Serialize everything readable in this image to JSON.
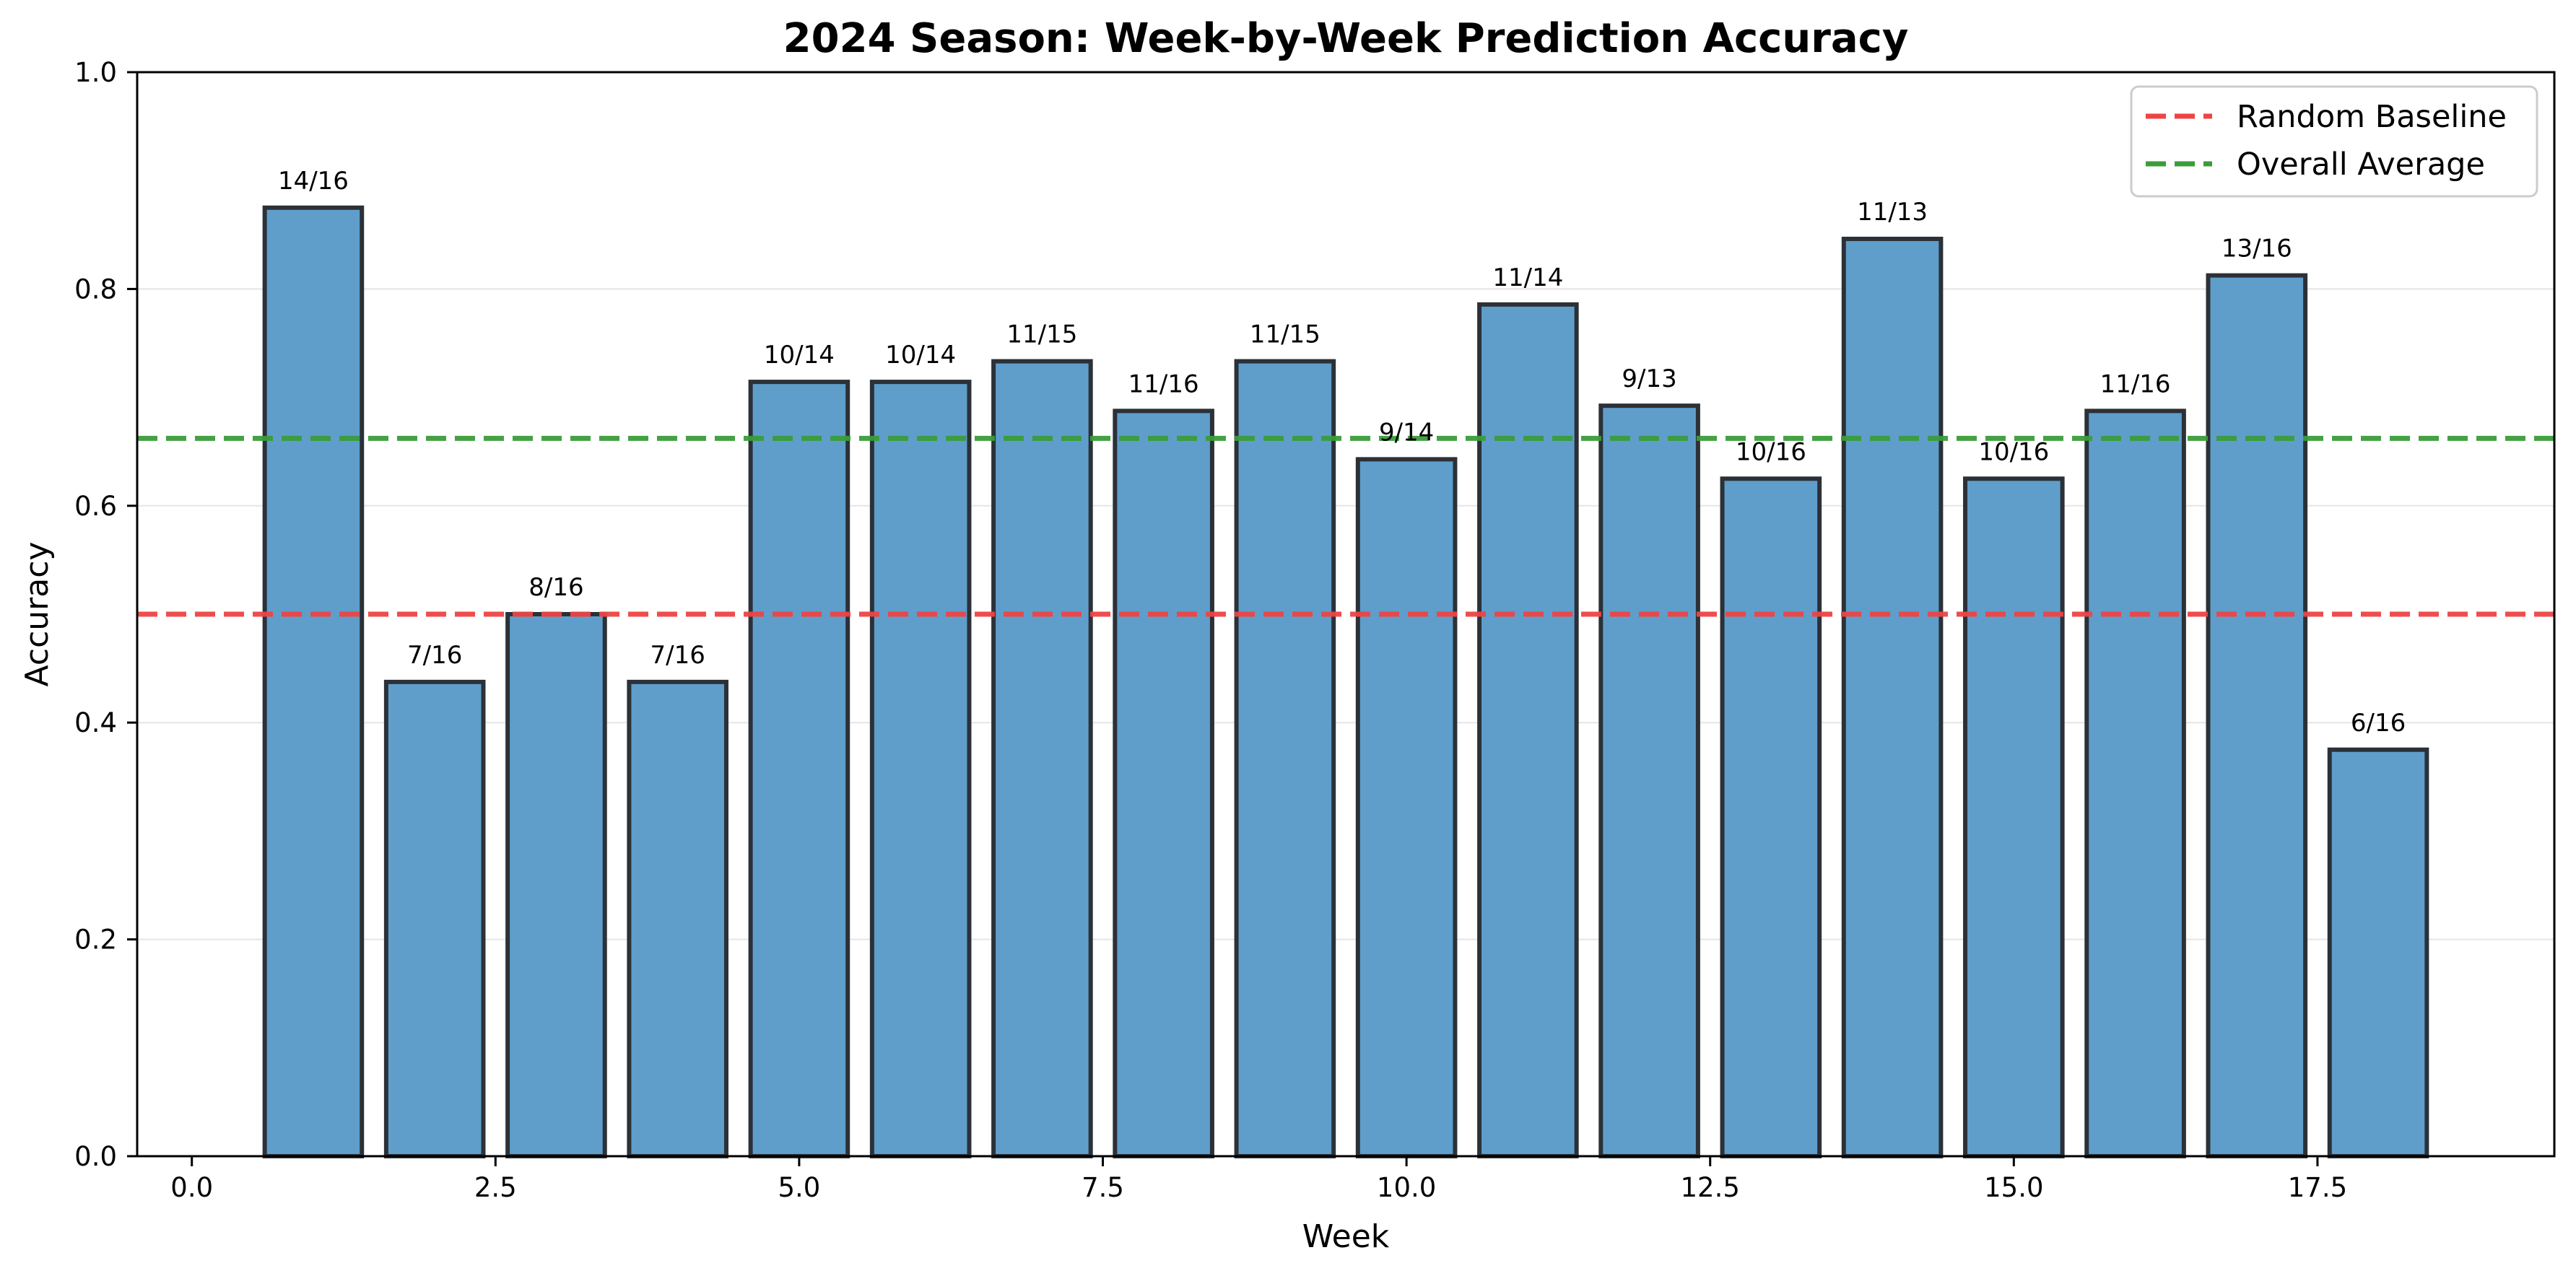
{
  "chart_data": {
    "type": "bar",
    "title": "2024 Season: Week-by-Week Prediction Accuracy",
    "xlabel": "Week",
    "ylabel": "Accuracy",
    "xlim": [
      -0.45,
      19.45
    ],
    "ylim": [
      0,
      1.0
    ],
    "xticks": [
      0.0,
      2.5,
      5.0,
      7.5,
      10.0,
      12.5,
      15.0,
      17.5
    ],
    "xtick_labels": [
      "0.0",
      "2.5",
      "5.0",
      "7.5",
      "10.0",
      "12.5",
      "15.0",
      "17.5"
    ],
    "yticks": [
      0.0,
      0.2,
      0.4,
      0.6,
      0.8,
      1.0
    ],
    "ytick_labels": [
      "0.0",
      "0.2",
      "0.4",
      "0.6",
      "0.8",
      "1.0"
    ],
    "grid": "horizontal",
    "bar_width": 0.8,
    "bar_color": "#5f9ecb",
    "bar_edge_color": "#2b3137",
    "weeks": [
      1,
      2,
      3,
      4,
      5,
      6,
      7,
      8,
      9,
      10,
      11,
      12,
      13,
      14,
      15,
      16,
      17,
      18
    ],
    "values": [
      0.875,
      0.4375,
      0.5,
      0.4375,
      0.7143,
      0.7143,
      0.7333,
      0.6875,
      0.7333,
      0.6429,
      0.7857,
      0.6923,
      0.625,
      0.8462,
      0.625,
      0.6875,
      0.8125,
      0.375
    ],
    "labels": [
      "14/16",
      "7/16",
      "8/16",
      "7/16",
      "10/14",
      "10/14",
      "11/15",
      "11/16",
      "11/15",
      "9/14",
      "11/14",
      "9/13",
      "10/16",
      "11/13",
      "10/16",
      "11/16",
      "13/16",
      "6/16"
    ],
    "reference_lines": [
      {
        "name": "Random Baseline",
        "y": 0.5,
        "color": "#ef4444",
        "style": "dashed"
      },
      {
        "name": "Overall Average",
        "y": 0.6622,
        "color": "#3a9d3a",
        "style": "dashed"
      }
    ],
    "legend_position": "top-right"
  }
}
